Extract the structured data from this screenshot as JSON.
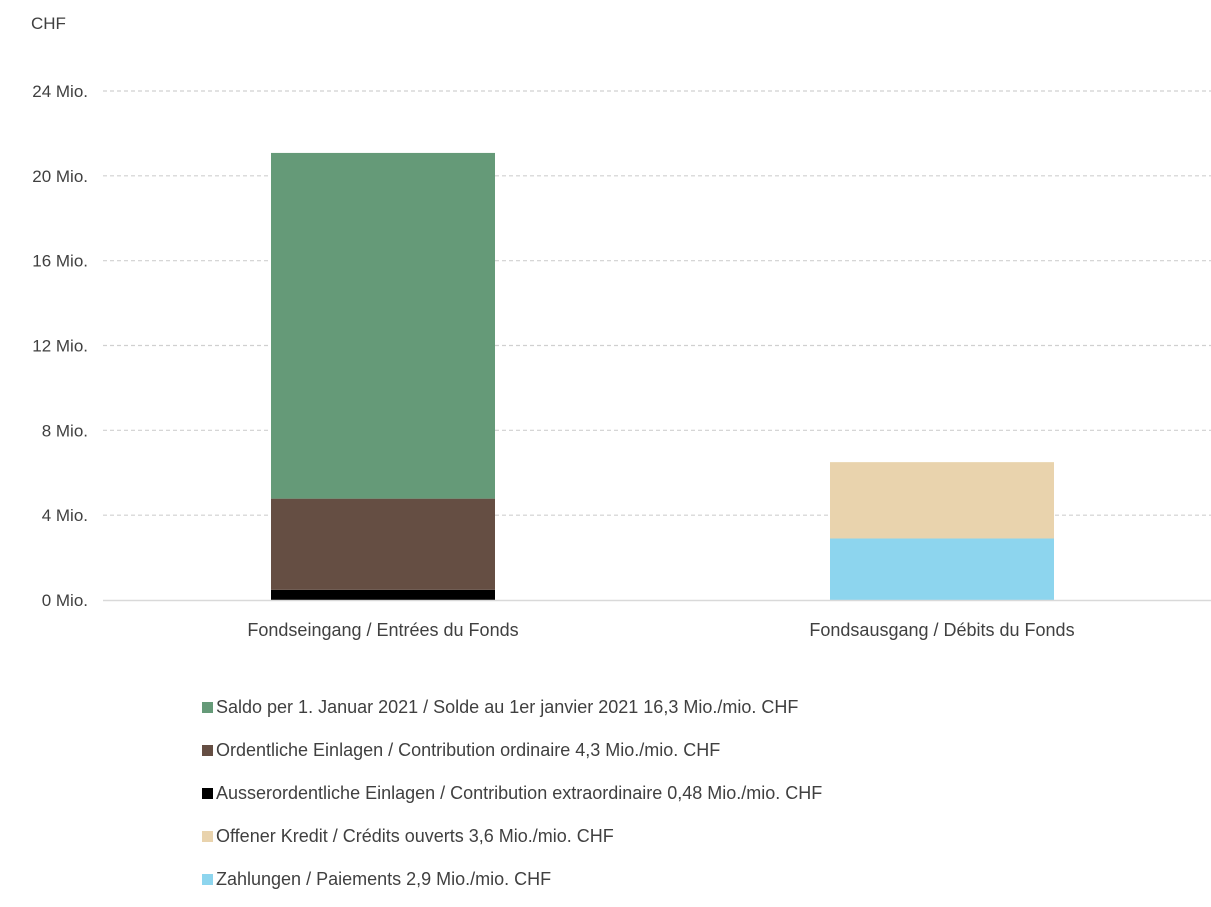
{
  "chart_data": {
    "type": "bar",
    "stacked": true,
    "unit_label": "CHF",
    "categories": [
      "Fondseingang / Entrées du Fonds",
      "Fondsausgang / Débits du Fonds"
    ],
    "yticks": [
      "0 Mio.",
      "4 Mio.",
      "8 Mio.",
      "12 Mio.",
      "16 Mio.",
      "20 Mio.",
      "24 Mio."
    ],
    "ylim": [
      0,
      24
    ],
    "grid": true,
    "legend_position": "bottom",
    "series": [
      {
        "name": "Ausserordentliche Einlagen / Contribution extraordinaire 0,48 Mio./mio. CHF",
        "color": "#000000",
        "values": [
          0.48,
          0
        ]
      },
      {
        "name": "Ordentliche Einlagen / Contribution ordinaire 4,3 Mio./mio. CHF",
        "color": "#654e43",
        "values": [
          4.3,
          0
        ]
      },
      {
        "name": "Saldo per 1. Januar 2021 / Solde au 1er janvier 2021 16,3 Mio./mio. CHF",
        "color": "#659a78",
        "values": [
          16.3,
          0
        ]
      },
      {
        "name": "Zahlungen / Paiements 2,9 Mio./mio. CHF",
        "color": "#8dd5ee",
        "values": [
          0,
          2.9
        ]
      },
      {
        "name": "Offener Kredit / Crédits ouverts 3,6 Mio./mio. CHF",
        "color": "#e9d3ad",
        "values": [
          0,
          3.6
        ]
      }
    ],
    "legend_order": [
      2,
      1,
      0,
      4,
      3
    ]
  }
}
